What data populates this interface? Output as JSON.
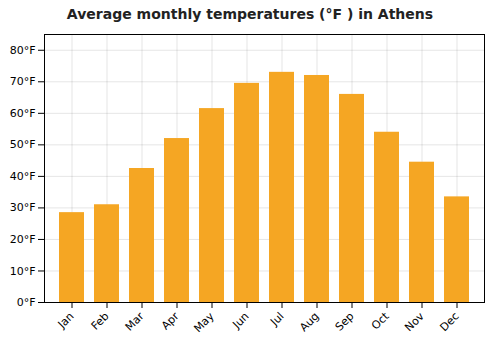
{
  "chart_data": {
    "type": "bar",
    "title": "Average monthly temperatures (°F ) in Athens",
    "categories": [
      "Jan",
      "Feb",
      "Mar",
      "Apr",
      "May",
      "Jun",
      "Jul",
      "Aug",
      "Sep",
      "Oct",
      "Nov",
      "Dec"
    ],
    "values": [
      28.5,
      31.0,
      42.5,
      52.0,
      61.5,
      69.5,
      73.0,
      72.0,
      66.0,
      54.0,
      44.5,
      33.5
    ],
    "color": "#F5A623",
    "ylim": [
      0,
      85
    ],
    "yticks": [
      {
        "value": 0,
        "label": "0°F"
      },
      {
        "value": 10,
        "label": "10°F"
      },
      {
        "value": 20,
        "label": "20°F"
      },
      {
        "value": 30,
        "label": "30°F"
      },
      {
        "value": 40,
        "label": "40°F"
      },
      {
        "value": 50,
        "label": "50°F"
      },
      {
        "value": 60,
        "label": "60°F"
      },
      {
        "value": 70,
        "label": "70°F"
      },
      {
        "value": 80,
        "label": "80°F"
      }
    ],
    "grid": true
  }
}
